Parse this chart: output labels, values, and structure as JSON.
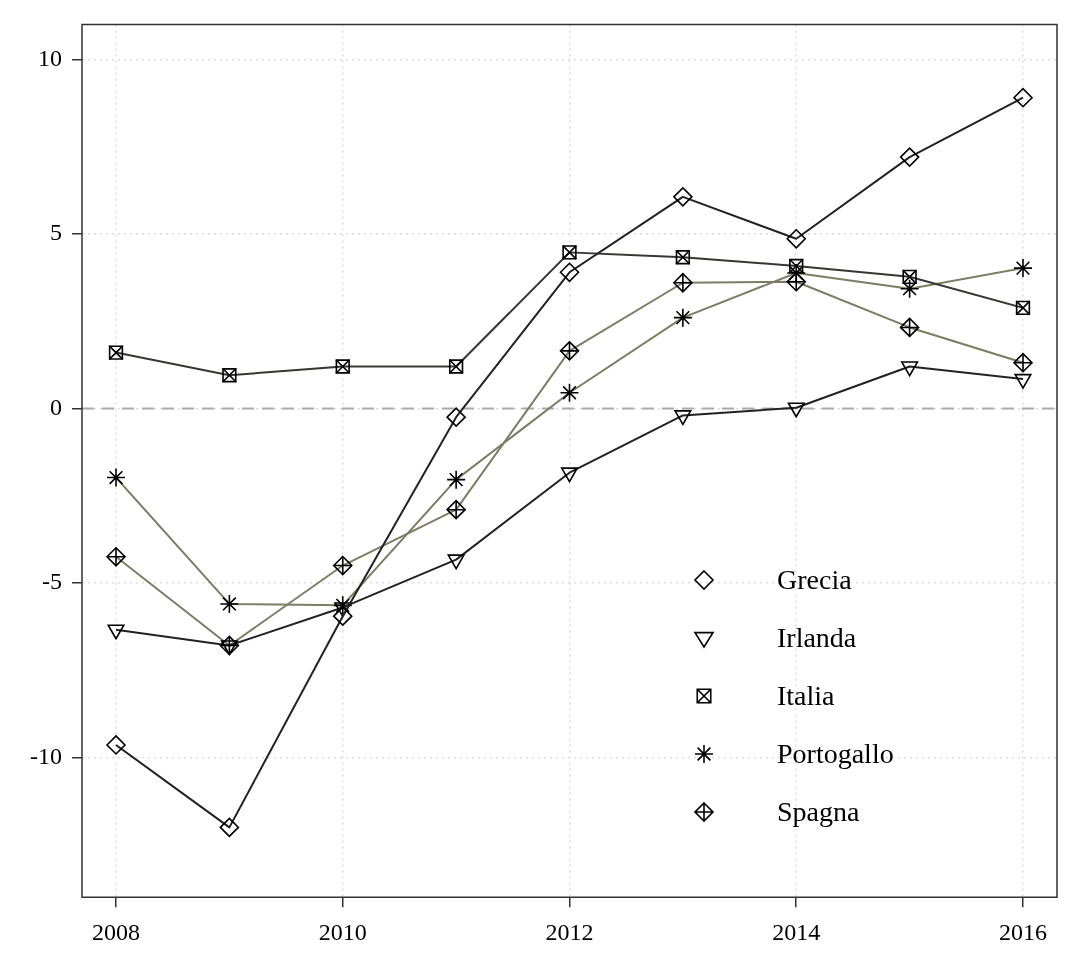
{
  "chart_data": {
    "type": "line",
    "x": [
      2008,
      2009,
      2010,
      2011,
      2012,
      2013,
      2014,
      2015,
      2016
    ],
    "series": [
      {
        "name": "Grecia",
        "color": "#222222",
        "marker": "diamond",
        "values": [
          -9.64,
          -12.0,
          -5.95,
          -0.25,
          3.9,
          6.06,
          4.86,
          7.2,
          8.9
        ]
      },
      {
        "name": "Irlanda",
        "color": "#222222",
        "marker": "triangle",
        "values": [
          -6.34,
          -6.79,
          -5.7,
          -4.33,
          -1.84,
          -0.2,
          0.02,
          1.2,
          0.84
        ]
      },
      {
        "name": "Italia",
        "color": "#363632",
        "marker": "square",
        "values": [
          1.6,
          0.95,
          1.2,
          1.2,
          4.47,
          4.33,
          4.08,
          3.77,
          2.88
        ]
      },
      {
        "name": "Portogallo",
        "color": "#7d7d66",
        "marker": "cross",
        "values": [
          -1.98,
          -5.6,
          -5.64,
          -2.04,
          0.45,
          2.6,
          3.88,
          3.43,
          4.02
        ]
      },
      {
        "name": "Spagna",
        "color": "#7d7d66",
        "marker": "diamond",
        "values": [
          -4.25,
          -6.79,
          -4.5,
          -2.9,
          1.65,
          3.6,
          3.63,
          2.32,
          1.31
        ]
      }
    ],
    "xlim": [
      2007.7,
      2016.3
    ],
    "xticks": [
      2008,
      2010,
      2012,
      2014,
      2016
    ],
    "ylim": [
      -14,
      11
    ],
    "yticks": [
      -10,
      -5,
      0,
      5,
      10
    ],
    "ref_lines": [
      {
        "axis": "y",
        "value": 0,
        "color": "#aaaaaa",
        "line_style": "dashed"
      }
    ],
    "grid": true,
    "legend": "bottom right",
    "line_style": "solid"
  }
}
